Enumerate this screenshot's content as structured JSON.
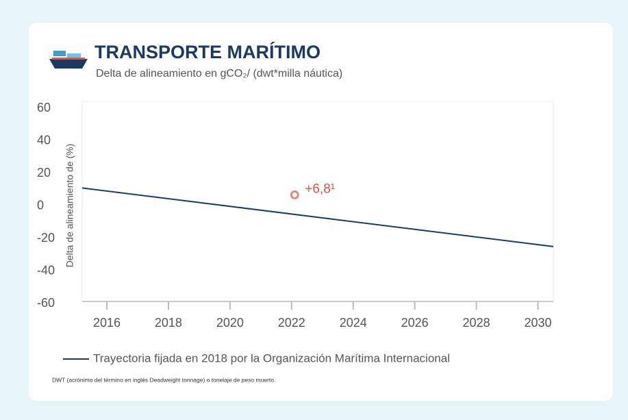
{
  "chart_data": {
    "type": "line",
    "title": "TRANSPORTE MARÍTIMO",
    "subtitle": "Delta de alineamiento en  gCO₂/ (dwt*milla náutica)",
    "y_label": "Delta de alineamiento de (%)",
    "xlim": [
      2015.2,
      2030.5
    ],
    "xticks": [
      2016,
      2018,
      2020,
      2022,
      2024,
      2026,
      2028,
      2030
    ],
    "ylim": [
      -60,
      60
    ],
    "yticks": [
      60,
      40,
      20,
      0,
      -20,
      -40,
      -60
    ],
    "series": [
      {
        "name": "Trayectoria fijada en 2018 por la Organización Marítima Internacional",
        "color": "#1b3a63",
        "x": [
          2015.2,
          2030.5
        ],
        "values": [
          11,
          -25
        ]
      }
    ],
    "point": {
      "x": 2022.1,
      "value": 6.8,
      "value_label": "+6,8¹",
      "color": "#e08a8a"
    },
    "footnote": "DWT (acrónimo del término en inglés Deadweight tonnage) o tonelaje de peso muerto."
  }
}
